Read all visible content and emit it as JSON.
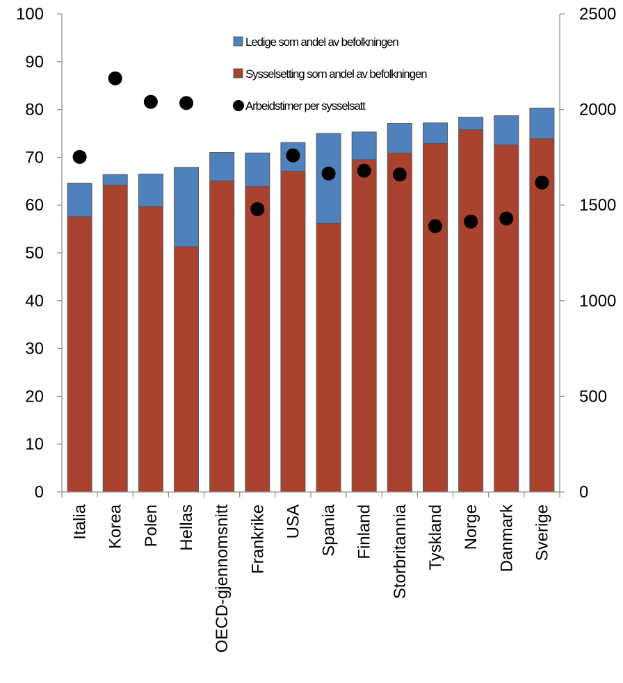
{
  "chart_data": {
    "type": "bar",
    "stacked": true,
    "categories": [
      "Italia",
      "Korea",
      "Polen",
      "Hellas",
      "OECD-gjennomsnitt",
      "Frankrike",
      "USA",
      "Spania",
      "Finland",
      "Storbritannia",
      "Tyskland",
      "Norge",
      "Danmark",
      "Sverige"
    ],
    "series": [
      {
        "name": "Sysselsetting som andel av befolkningen",
        "kind": "bar",
        "axis": "left",
        "color": "#a9432f",
        "values": [
          57.6,
          64.2,
          59.7,
          51.3,
          65.1,
          63.9,
          67.1,
          56.2,
          69.5,
          70.9,
          72.9,
          75.8,
          72.6,
          73.9
        ]
      },
      {
        "name": "Ledige som andel av befolkningen",
        "kind": "bar",
        "axis": "left",
        "color": "#4f81bd",
        "values": [
          7.0,
          2.2,
          6.8,
          16.6,
          5.9,
          7.0,
          6.0,
          18.8,
          5.8,
          6.2,
          4.3,
          2.6,
          6.1,
          6.4
        ]
      },
      {
        "name": "Arbeidstimer per sysselsatt",
        "kind": "scatter",
        "axis": "right",
        "color": "#000000",
        "values": [
          1752,
          2163,
          2040,
          2034,
          null,
          1479,
          1760,
          1665,
          1680,
          1660,
          1390,
          1414,
          1430,
          1618
        ]
      }
    ],
    "legend_order": [
      "Ledige som andel av befolkningen",
      "Sysselsetting som andel av befolkningen",
      "Arbeidstimer per sysselsatt"
    ],
    "y_left": {
      "min": 0,
      "max": 100,
      "ticks": [
        0,
        10,
        20,
        30,
        40,
        50,
        60,
        70,
        80,
        90,
        100
      ]
    },
    "y_right": {
      "min": 0,
      "max": 2500,
      "ticks": [
        0,
        500,
        1000,
        1500,
        2000,
        2500
      ]
    },
    "legend_position": "top-center",
    "grid": false
  }
}
